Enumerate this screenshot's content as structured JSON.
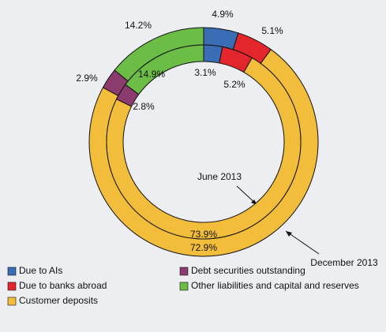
{
  "chart_data": {
    "type": "donut",
    "categories": [
      "Due to AIs",
      "Due to banks abroad",
      "Customer deposits",
      "Debt securities outstanding",
      "Other liabilities and capital and reserves"
    ],
    "colors": [
      "#3a6db5",
      "#e3262b",
      "#f3bd3c",
      "#8c3b6f",
      "#6bbd45"
    ],
    "series": [
      {
        "name": "December 2013",
        "values": [
          4.9,
          5.1,
          72.9,
          2.9,
          14.2
        ],
        "value_labels": [
          "4.9%",
          "5.1%",
          "72.9%",
          "2.9%",
          "14.2%"
        ]
      },
      {
        "name": "June 2013",
        "values": [
          3.1,
          5.2,
          73.9,
          2.8,
          14.9
        ],
        "value_labels": [
          "3.1%",
          "5.2%",
          "73.9%",
          "2.8%",
          "14.9%"
        ]
      }
    ]
  }
}
